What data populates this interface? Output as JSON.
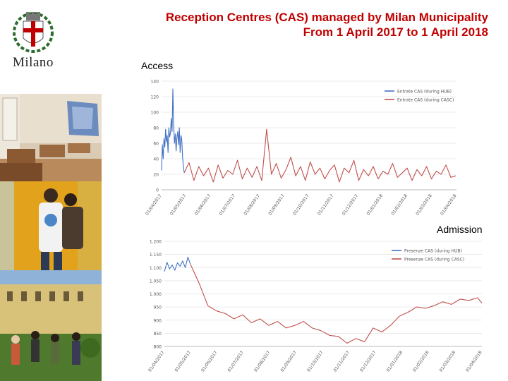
{
  "header": {
    "title_line1": "Reception Centres (CAS) managed by Milan Municipality",
    "title_line2": "From 1 April 2017 to  1 April 2018"
  },
  "logo": {
    "text": "Milano"
  },
  "colors": {
    "title": "#c00000",
    "hub_series": "#4472c4",
    "casc_series": "#c0504d"
  },
  "chart_data": [
    {
      "type": "line",
      "label": "Access",
      "ylim": [
        0,
        140
      ],
      "yticks": [
        "0",
        "20",
        "40",
        "60",
        "80",
        "100",
        "120",
        "140"
      ],
      "xticks": [
        "01/04/2017",
        "01/05/2017",
        "01/06/2017",
        "01/07/2017",
        "01/08/2017",
        "01/09/2017",
        "01/10/2017",
        "01/11/2017",
        "01/12/2017",
        "01/01/2018",
        "01/02/2018",
        "01/03/2018",
        "01/04/2018"
      ],
      "series": [
        {
          "name": "Entrate CAS (during HUB)",
          "color": "#4472c4",
          "x": [
            0,
            1,
            2,
            3,
            4,
            5,
            6,
            7,
            8,
            9,
            10,
            11,
            12,
            13,
            14,
            15,
            16,
            17,
            18,
            19,
            20,
            21,
            22,
            23,
            24,
            25,
            26,
            27,
            28
          ],
          "y": [
            25,
            58,
            40,
            66,
            55,
            78,
            62,
            70,
            48,
            80,
            68,
            73,
            92,
            75,
            130,
            82,
            60,
            72,
            50,
            68,
            75,
            58,
            80,
            48,
            70,
            65,
            42,
            30,
            22
          ]
        },
        {
          "name": "Entrate CAS (during CASC)",
          "color": "#c0504d",
          "x": [
            28,
            34,
            40,
            46,
            52,
            58,
            64,
            70,
            76,
            82,
            88,
            94,
            100,
            106,
            112,
            118,
            124,
            130,
            136,
            142,
            148,
            154,
            160,
            166,
            172,
            178,
            184,
            190,
            196,
            202,
            208,
            214,
            220,
            226,
            232,
            238,
            244,
            250,
            256,
            262,
            268,
            274,
            280,
            286,
            292,
            298,
            304,
            310,
            316,
            322,
            328,
            334,
            340,
            346,
            352,
            358,
            364
          ],
          "y": [
            22,
            35,
            12,
            30,
            18,
            28,
            10,
            32,
            15,
            25,
            20,
            38,
            14,
            28,
            16,
            30,
            12,
            78,
            20,
            34,
            15,
            26,
            42,
            18,
            30,
            12,
            36,
            20,
            28,
            14,
            25,
            32,
            10,
            28,
            22,
            38,
            12,
            26,
            18,
            30,
            14,
            24,
            20,
            34,
            16,
            22,
            28,
            12,
            26,
            18,
            30,
            14,
            24,
            20,
            32,
            16,
            18
          ]
        }
      ]
    },
    {
      "type": "line",
      "label": "Admission",
      "ylim": [
        800,
        1200
      ],
      "yticks": [
        "800",
        "850",
        "900",
        "950",
        "1.000",
        "1.050",
        "1.100",
        "1.150",
        "1.200"
      ],
      "xticks": [
        "01/04/2017",
        "01/05/2017",
        "01/06/2017",
        "01/07/2017",
        "01/08/2017",
        "01/09/2017",
        "01/10/2017",
        "01/11/2017",
        "01/12/2017",
        "01/01/2018",
        "01/02/2018",
        "01/03/2018",
        "01/04/2018"
      ],
      "series": [
        {
          "name": "Presenze CAS (during HUB)",
          "color": "#4472c4",
          "x": [
            0,
            3,
            6,
            9,
            12,
            15,
            18,
            21,
            24,
            27,
            30
          ],
          "y": [
            1085,
            1120,
            1095,
            1110,
            1090,
            1118,
            1105,
            1125,
            1100,
            1140,
            1112
          ]
        },
        {
          "name": "Presenze CAS (during CASC)",
          "color": "#c0504d",
          "x": [
            30,
            40,
            50,
            60,
            70,
            80,
            90,
            100,
            110,
            120,
            130,
            140,
            150,
            160,
            170,
            180,
            190,
            200,
            210,
            220,
            230,
            240,
            250,
            260,
            270,
            280,
            290,
            300,
            310,
            320,
            330,
            340,
            350,
            360,
            365
          ],
          "y": [
            1112,
            1040,
            955,
            935,
            925,
            905,
            920,
            890,
            905,
            880,
            895,
            870,
            880,
            895,
            870,
            860,
            842,
            838,
            812,
            830,
            818,
            870,
            855,
            880,
            915,
            930,
            950,
            945,
            955,
            970,
            960,
            980,
            975,
            985,
            965
          ]
        }
      ]
    }
  ]
}
